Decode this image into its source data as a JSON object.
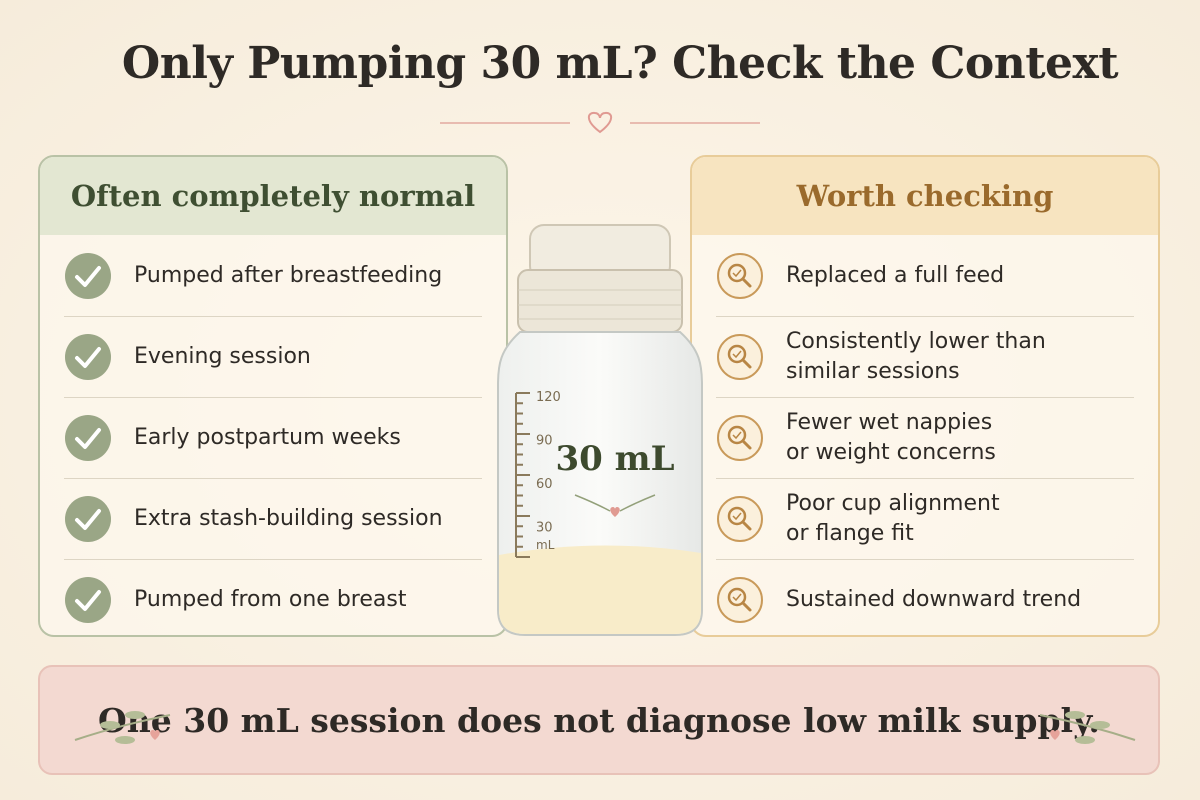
{
  "header": {
    "title": "Only Pumping 30 mL? Check the Context"
  },
  "left_panel": {
    "heading": "Often completely normal",
    "items": [
      [
        "Pumped after breastfeeding"
      ],
      [
        "Evening session"
      ],
      [
        "Early postpartum weeks"
      ],
      [
        "Extra stash-building session"
      ],
      [
        "Pumped from one breast"
      ]
    ]
  },
  "bottle": {
    "label": "30 mL",
    "scale": [
      "120",
      "90",
      "60",
      "30"
    ],
    "unit": "mL"
  },
  "right_panel": {
    "heading": "Worth checking",
    "items": [
      [
        "Replaced a full feed"
      ],
      [
        "Consistently lower than",
        "similar sessions"
      ],
      [
        "Fewer wet nappies",
        "or weight concerns"
      ],
      [
        "Poor cup alignment",
        "or flange fit"
      ],
      [
        "Sustained downward trend"
      ]
    ]
  },
  "footer": {
    "text": "One 30 mL session does not diagnose low milk supply."
  }
}
